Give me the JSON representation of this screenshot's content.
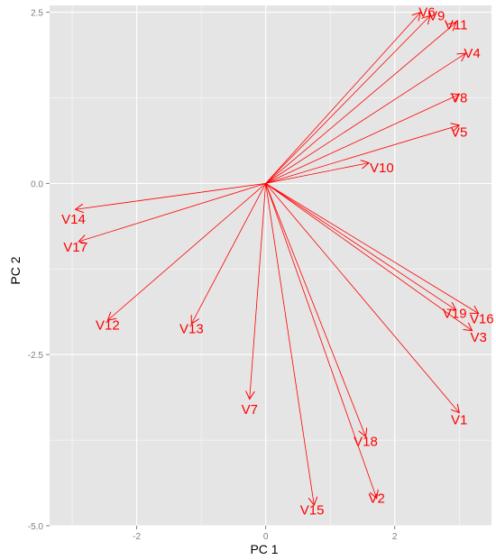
{
  "chart_data": {
    "type": "biplot",
    "xlabel": "PC 1",
    "ylabel": "PC 2",
    "xlim": [
      -3.35,
      3.5
    ],
    "ylim": [
      -5.0,
      2.6
    ],
    "x_ticks": [
      -2,
      0,
      2
    ],
    "y_ticks": [
      2.5,
      0.0,
      -2.5,
      -5.0
    ],
    "x_tick_labels": [
      "-2",
      "0",
      "2"
    ],
    "y_tick_labels": [
      "2.5",
      "0.0",
      "-2.5",
      "-5.0"
    ],
    "grid": true,
    "background_color": "#e5e5e5",
    "grid_color": "#ffffff",
    "vector_color": "#ff0000",
    "origin": [
      0,
      0
    ],
    "vectors": [
      {
        "name": "V1",
        "x": 3.0,
        "y": -3.35,
        "label_x": 3.0,
        "label_y": -3.45
      },
      {
        "name": "V2",
        "x": 1.72,
        "y": -4.6,
        "label_x": 1.72,
        "label_y": -4.6
      },
      {
        "name": "V3",
        "x": 3.2,
        "y": -2.15,
        "label_x": 3.3,
        "label_y": -2.25
      },
      {
        "name": "V4",
        "x": 3.1,
        "y": 1.9,
        "label_x": 3.2,
        "label_y": 1.9
      },
      {
        "name": "V5",
        "x": 3.0,
        "y": 0.85,
        "label_x": 3.0,
        "label_y": 0.75
      },
      {
        "name": "V6",
        "x": 2.4,
        "y": 2.5,
        "label_x": 2.5,
        "label_y": 2.5
      },
      {
        "name": "V7",
        "x": -0.25,
        "y": -3.15,
        "label_x": -0.25,
        "label_y": -3.3
      },
      {
        "name": "V8",
        "x": 3.0,
        "y": 1.3,
        "label_x": 3.0,
        "label_y": 1.25
      },
      {
        "name": "V9",
        "x": 2.55,
        "y": 2.45,
        "label_x": 2.65,
        "label_y": 2.45
      },
      {
        "name": "V10",
        "x": 1.6,
        "y": 0.3,
        "label_x": 1.8,
        "label_y": 0.23
      },
      {
        "name": "V11",
        "x": 2.95,
        "y": 2.35,
        "label_x": 2.95,
        "label_y": 2.32
      },
      {
        "name": "V12",
        "x": -2.45,
        "y": -2.0,
        "label_x": -2.45,
        "label_y": -2.07
      },
      {
        "name": "V13",
        "x": -1.15,
        "y": -2.05,
        "label_x": -1.15,
        "label_y": -2.12
      },
      {
        "name": "V14",
        "x": -2.95,
        "y": -0.38,
        "label_x": -2.98,
        "label_y": -0.52
      },
      {
        "name": "V15",
        "x": 0.75,
        "y": -4.7,
        "label_x": 0.72,
        "label_y": -4.77
      },
      {
        "name": "V16",
        "x": 3.3,
        "y": -1.9,
        "label_x": 3.35,
        "label_y": -1.98
      },
      {
        "name": "V17",
        "x": -2.9,
        "y": -0.85,
        "label_x": -2.95,
        "label_y": -0.93
      },
      {
        "name": "V18",
        "x": 1.55,
        "y": -3.7,
        "label_x": 1.55,
        "label_y": -3.77
      },
      {
        "name": "V19",
        "x": 2.95,
        "y": -1.85,
        "label_x": 2.93,
        "label_y": -1.9
      }
    ]
  }
}
